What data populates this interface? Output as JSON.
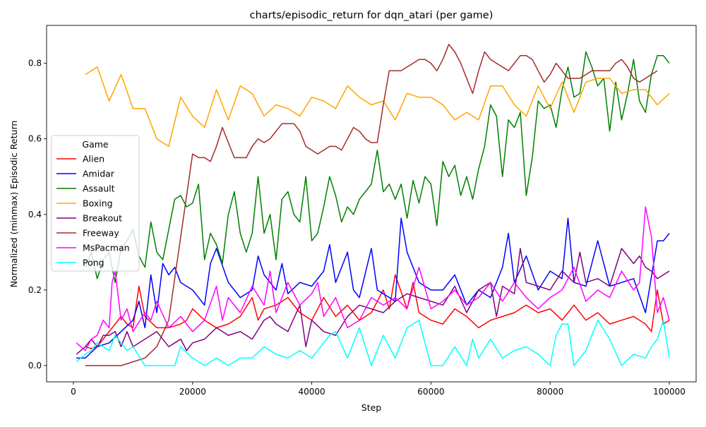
{
  "chart_data": {
    "type": "line",
    "title": "charts/episodic_return for dqn_atari (per game)",
    "xlabel": "Step",
    "ylabel": "Normalized (minmax) Episodic Return",
    "xlim": [
      -4500,
      104500
    ],
    "ylim": [
      -0.043,
      0.9
    ],
    "xticks": [
      0,
      20000,
      40000,
      60000,
      80000,
      100000
    ],
    "yticks": [
      0.0,
      0.2,
      0.4,
      0.6,
      0.8
    ],
    "xtick_labels": [
      "0",
      "20000",
      "40000",
      "60000",
      "80000",
      "100000"
    ],
    "ytick_labels": [
      "0.0",
      "0.2",
      "0.4",
      "0.6",
      "0.8"
    ],
    "grid": false,
    "legend_title": "Game",
    "legend_position": "center-left",
    "series": [
      {
        "name": "Alien",
        "color": "#ff0000",
        "x": [
          2000,
          3000,
          4000,
          5000,
          6000,
          7000,
          8000,
          9000,
          10000,
          11000,
          12000,
          14000,
          16000,
          18000,
          19000,
          20000,
          22000,
          24000,
          26000,
          28000,
          30000,
          31000,
          32000,
          34000,
          36000,
          38000,
          40000,
          42000,
          44000,
          46000,
          48000,
          50000,
          52000,
          53000,
          54000,
          56000,
          57000,
          58000,
          60000,
          62000,
          64000,
          66000,
          68000,
          70000,
          72000,
          74000,
          76000,
          78000,
          80000,
          82000,
          84000,
          86000,
          88000,
          90000,
          92000,
          94000,
          96000,
          97000,
          98000,
          99000,
          100000
        ],
        "y": [
          0.05,
          0.045,
          0.05,
          0.07,
          0.09,
          0.11,
          0.13,
          0.11,
          0.1,
          0.21,
          0.13,
          0.1,
          0.1,
          0.11,
          0.12,
          0.15,
          0.12,
          0.1,
          0.11,
          0.13,
          0.18,
          0.12,
          0.15,
          0.16,
          0.18,
          0.14,
          0.12,
          0.18,
          0.13,
          0.16,
          0.12,
          0.14,
          0.2,
          0.15,
          0.24,
          0.15,
          0.22,
          0.14,
          0.12,
          0.11,
          0.15,
          0.13,
          0.1,
          0.12,
          0.13,
          0.14,
          0.16,
          0.14,
          0.15,
          0.12,
          0.16,
          0.12,
          0.14,
          0.11,
          0.12,
          0.13,
          0.11,
          0.09,
          0.2,
          0.11,
          0.12
        ]
      },
      {
        "name": "Amidar",
        "color": "#0000ff",
        "x": [
          500,
          2000,
          4000,
          6000,
          8000,
          10000,
          11000,
          12000,
          13000,
          14000,
          15000,
          16000,
          17000,
          18000,
          20000,
          22000,
          23000,
          24000,
          26000,
          28000,
          30000,
          31000,
          32000,
          34000,
          35000,
          36000,
          38000,
          40000,
          42000,
          43000,
          44000,
          46000,
          47000,
          48000,
          50000,
          51000,
          52000,
          54000,
          55000,
          56000,
          58000,
          60000,
          62000,
          64000,
          66000,
          68000,
          70000,
          72000,
          73000,
          74000,
          76000,
          78000,
          80000,
          82000,
          83000,
          84000,
          86000,
          88000,
          90000,
          92000,
          94000,
          96000,
          98000,
          99000,
          100000
        ],
        "y": [
          0.02,
          0.02,
          0.05,
          0.06,
          0.09,
          0.12,
          0.17,
          0.1,
          0.24,
          0.14,
          0.27,
          0.24,
          0.26,
          0.22,
          0.2,
          0.16,
          0.27,
          0.31,
          0.22,
          0.18,
          0.2,
          0.29,
          0.24,
          0.2,
          0.27,
          0.19,
          0.22,
          0.21,
          0.25,
          0.32,
          0.22,
          0.3,
          0.2,
          0.18,
          0.31,
          0.2,
          0.19,
          0.17,
          0.39,
          0.3,
          0.22,
          0.2,
          0.2,
          0.24,
          0.16,
          0.2,
          0.18,
          0.26,
          0.35,
          0.22,
          0.29,
          0.2,
          0.25,
          0.23,
          0.39,
          0.22,
          0.21,
          0.33,
          0.21,
          0.22,
          0.23,
          0.14,
          0.33,
          0.33,
          0.35
        ]
      },
      {
        "name": "Assault",
        "color": "#008000",
        "x": [
          2000,
          3000,
          4000,
          5000,
          6000,
          7000,
          8000,
          9000,
          10000,
          11000,
          12000,
          13000,
          14000,
          15000,
          16000,
          17000,
          18000,
          19000,
          20000,
          21000,
          22000,
          23000,
          24000,
          25000,
          26000,
          27000,
          28000,
          29000,
          30000,
          31000,
          32000,
          33000,
          34000,
          35000,
          36000,
          37000,
          38000,
          39000,
          40000,
          41000,
          42000,
          43000,
          44000,
          45000,
          46000,
          47000,
          48000,
          49000,
          50000,
          51000,
          52000,
          53000,
          54000,
          55000,
          56000,
          57000,
          58000,
          59000,
          60000,
          61000,
          62000,
          63000,
          64000,
          65000,
          66000,
          67000,
          68000,
          69000,
          70000,
          71000,
          72000,
          73000,
          74000,
          75000,
          76000,
          77000,
          78000,
          79000,
          80000,
          81000,
          82000,
          83000,
          84000,
          85000,
          86000,
          87000,
          88000,
          89000,
          90000,
          91000,
          92000,
          93000,
          94000,
          95000,
          96000,
          97000,
          98000,
          99000,
          100000
        ],
        "y": [
          0.26,
          0.3,
          0.23,
          0.28,
          0.3,
          0.22,
          0.31,
          0.33,
          0.36,
          0.29,
          0.26,
          0.38,
          0.3,
          0.28,
          0.36,
          0.44,
          0.45,
          0.42,
          0.43,
          0.48,
          0.28,
          0.35,
          0.32,
          0.27,
          0.4,
          0.46,
          0.35,
          0.3,
          0.35,
          0.5,
          0.35,
          0.4,
          0.28,
          0.44,
          0.46,
          0.4,
          0.38,
          0.5,
          0.33,
          0.35,
          0.42,
          0.5,
          0.45,
          0.38,
          0.42,
          0.4,
          0.44,
          0.46,
          0.48,
          0.57,
          0.46,
          0.48,
          0.44,
          0.48,
          0.39,
          0.49,
          0.43,
          0.5,
          0.48,
          0.37,
          0.54,
          0.5,
          0.53,
          0.45,
          0.5,
          0.44,
          0.52,
          0.58,
          0.69,
          0.66,
          0.5,
          0.65,
          0.63,
          0.67,
          0.45,
          0.55,
          0.7,
          0.68,
          0.69,
          0.63,
          0.73,
          0.79,
          0.71,
          0.72,
          0.83,
          0.79,
          0.74,
          0.76,
          0.62,
          0.75,
          0.65,
          0.72,
          0.81,
          0.7,
          0.67,
          0.77,
          0.82,
          0.82,
          0.8
        ]
      },
      {
        "name": "Boxing",
        "color": "#ffa500",
        "x": [
          2000,
          4000,
          6000,
          8000,
          10000,
          12000,
          14000,
          16000,
          18000,
          20000,
          22000,
          24000,
          26000,
          28000,
          30000,
          32000,
          34000,
          36000,
          38000,
          40000,
          42000,
          44000,
          46000,
          48000,
          50000,
          52000,
          54000,
          56000,
          58000,
          60000,
          62000,
          64000,
          66000,
          68000,
          70000,
          72000,
          74000,
          76000,
          78000,
          80000,
          82000,
          84000,
          86000,
          88000,
          90000,
          92000,
          94000,
          96000,
          98000,
          100000
        ],
        "y": [
          0.77,
          0.79,
          0.7,
          0.77,
          0.68,
          0.68,
          0.6,
          0.58,
          0.71,
          0.66,
          0.63,
          0.73,
          0.65,
          0.74,
          0.72,
          0.66,
          0.69,
          0.68,
          0.66,
          0.71,
          0.7,
          0.68,
          0.74,
          0.71,
          0.69,
          0.7,
          0.65,
          0.72,
          0.71,
          0.71,
          0.69,
          0.65,
          0.67,
          0.65,
          0.74,
          0.74,
          0.69,
          0.66,
          0.74,
          0.68,
          0.75,
          0.67,
          0.75,
          0.76,
          0.76,
          0.72,
          0.73,
          0.73,
          0.69,
          0.72
        ]
      },
      {
        "name": "Breakout",
        "color": "#800080",
        "x": [
          500,
          2000,
          3000,
          4000,
          5000,
          6000,
          7000,
          8000,
          9000,
          10000,
          12000,
          14000,
          16000,
          18000,
          19000,
          20000,
          22000,
          24000,
          26000,
          28000,
          30000,
          32000,
          33000,
          34000,
          36000,
          38000,
          39000,
          40000,
          42000,
          44000,
          46000,
          48000,
          50000,
          52000,
          54000,
          56000,
          58000,
          60000,
          62000,
          64000,
          66000,
          68000,
          70000,
          71000,
          72000,
          74000,
          75000,
          76000,
          78000,
          80000,
          82000,
          84000,
          85000,
          86000,
          88000,
          90000,
          92000,
          94000,
          95000,
          96000,
          97000,
          98000,
          99000,
          100000
        ],
        "y": [
          0.03,
          0.05,
          0.07,
          0.05,
          0.08,
          0.08,
          0.09,
          0.05,
          0.09,
          0.05,
          0.07,
          0.09,
          0.05,
          0.07,
          0.04,
          0.06,
          0.07,
          0.1,
          0.08,
          0.09,
          0.07,
          0.12,
          0.13,
          0.11,
          0.09,
          0.16,
          0.05,
          0.12,
          0.09,
          0.08,
          0.13,
          0.16,
          0.15,
          0.14,
          0.17,
          0.19,
          0.18,
          0.17,
          0.16,
          0.21,
          0.14,
          0.2,
          0.22,
          0.13,
          0.21,
          0.19,
          0.31,
          0.22,
          0.21,
          0.2,
          0.25,
          0.22,
          0.3,
          0.22,
          0.23,
          0.21,
          0.31,
          0.27,
          0.29,
          0.26,
          0.25,
          0.23,
          0.24,
          0.25
        ]
      },
      {
        "name": "Freeway",
        "color": "#a52a2a",
        "x": [
          2000,
          4000,
          6000,
          8000,
          10000,
          12000,
          14000,
          16000,
          18000,
          20000,
          21000,
          22000,
          23000,
          24000,
          25000,
          26000,
          27000,
          28000,
          29000,
          30000,
          31000,
          32000,
          33000,
          34000,
          35000,
          36000,
          37000,
          38000,
          39000,
          40000,
          41000,
          42000,
          43000,
          44000,
          45000,
          46000,
          47000,
          48000,
          49000,
          50000,
          51000,
          52000,
          53000,
          54000,
          55000,
          56000,
          57000,
          58000,
          59000,
          60000,
          61000,
          62000,
          63000,
          64000,
          65000,
          66000,
          67000,
          68000,
          69000,
          70000,
          71000,
          72000,
          73000,
          74000,
          75000,
          76000,
          77000,
          78000,
          79000,
          80000,
          81000,
          82000,
          83000,
          84000,
          85000,
          86000,
          87000,
          88000,
          89000,
          90000,
          91000,
          92000,
          93000,
          94000,
          95000,
          96000,
          97000,
          98000
        ],
        "y": [
          0.0,
          0.0,
          0.0,
          0.0,
          0.01,
          0.02,
          0.05,
          0.12,
          0.34,
          0.56,
          0.55,
          0.55,
          0.54,
          0.58,
          0.63,
          0.59,
          0.55,
          0.55,
          0.55,
          0.58,
          0.6,
          0.59,
          0.6,
          0.62,
          0.64,
          0.64,
          0.64,
          0.62,
          0.58,
          0.57,
          0.56,
          0.57,
          0.58,
          0.58,
          0.57,
          0.6,
          0.63,
          0.62,
          0.6,
          0.59,
          0.59,
          0.69,
          0.78,
          0.78,
          0.78,
          0.79,
          0.8,
          0.81,
          0.81,
          0.8,
          0.78,
          0.81,
          0.85,
          0.83,
          0.8,
          0.76,
          0.72,
          0.78,
          0.83,
          0.81,
          0.8,
          0.79,
          0.78,
          0.8,
          0.82,
          0.82,
          0.81,
          0.78,
          0.75,
          0.77,
          0.8,
          0.78,
          0.76,
          0.76,
          0.76,
          0.77,
          0.78,
          0.78,
          0.78,
          0.78,
          0.8,
          0.81,
          0.79,
          0.76,
          0.75,
          0.76,
          0.77,
          0.78
        ]
      },
      {
        "name": "MsPacman",
        "color": "#ff00ff",
        "x": [
          500,
          2000,
          3000,
          4000,
          5000,
          6000,
          6500,
          7000,
          8000,
          9000,
          10000,
          12000,
          13000,
          14000,
          16000,
          18000,
          20000,
          22000,
          24000,
          25000,
          26000,
          28000,
          30000,
          32000,
          33000,
          34000,
          36000,
          38000,
          40000,
          41000,
          42000,
          44000,
          46000,
          48000,
          50000,
          52000,
          54000,
          56000,
          58000,
          60000,
          62000,
          64000,
          66000,
          68000,
          70000,
          72000,
          74000,
          76000,
          78000,
          80000,
          82000,
          84000,
          86000,
          88000,
          90000,
          92000,
          94000,
          95000,
          96000,
          97000,
          98000,
          99000,
          100000
        ],
        "y": [
          0.06,
          0.04,
          0.07,
          0.08,
          0.12,
          0.1,
          0.22,
          0.25,
          0.12,
          0.15,
          0.09,
          0.14,
          0.12,
          0.17,
          0.1,
          0.13,
          0.09,
          0.12,
          0.21,
          0.12,
          0.18,
          0.14,
          0.21,
          0.16,
          0.25,
          0.14,
          0.22,
          0.16,
          0.19,
          0.22,
          0.13,
          0.18,
          0.1,
          0.12,
          0.18,
          0.16,
          0.18,
          0.15,
          0.26,
          0.15,
          0.17,
          0.2,
          0.16,
          0.18,
          0.22,
          0.17,
          0.22,
          0.18,
          0.15,
          0.18,
          0.2,
          0.26,
          0.17,
          0.2,
          0.18,
          0.25,
          0.2,
          0.22,
          0.42,
          0.34,
          0.14,
          0.18,
          0.12
        ]
      },
      {
        "name": "Pong",
        "color": "#00ffff",
        "x": [
          500,
          2000,
          3000,
          4000,
          5000,
          6000,
          7000,
          8000,
          9000,
          10000,
          12000,
          14000,
          16000,
          17000,
          18000,
          20000,
          22000,
          24000,
          26000,
          28000,
          30000,
          32000,
          34000,
          36000,
          38000,
          40000,
          42000,
          43000,
          44000,
          46000,
          48000,
          50000,
          52000,
          54000,
          56000,
          58000,
          60000,
          62000,
          64000,
          66000,
          67000,
          68000,
          70000,
          72000,
          74000,
          76000,
          78000,
          80000,
          81000,
          82000,
          83000,
          84000,
          86000,
          88000,
          90000,
          92000,
          94000,
          96000,
          97000,
          98000,
          99000,
          100000
        ],
        "y": [
          0.01,
          0.03,
          0.04,
          0.06,
          0.05,
          0.04,
          0.08,
          0.06,
          0.04,
          0.05,
          0.0,
          0.0,
          0.0,
          0.0,
          0.05,
          0.02,
          0.0,
          0.02,
          0.0,
          0.02,
          0.02,
          0.05,
          0.03,
          0.02,
          0.04,
          0.02,
          0.06,
          0.08,
          0.09,
          0.02,
          0.1,
          0.0,
          0.08,
          0.02,
          0.1,
          0.12,
          0.0,
          0.0,
          0.05,
          0.0,
          0.07,
          0.02,
          0.07,
          0.02,
          0.04,
          0.05,
          0.03,
          0.0,
          0.08,
          0.11,
          0.11,
          0.0,
          0.04,
          0.12,
          0.07,
          0.0,
          0.03,
          0.02,
          0.05,
          0.07,
          0.12,
          0.02
        ]
      }
    ]
  }
}
